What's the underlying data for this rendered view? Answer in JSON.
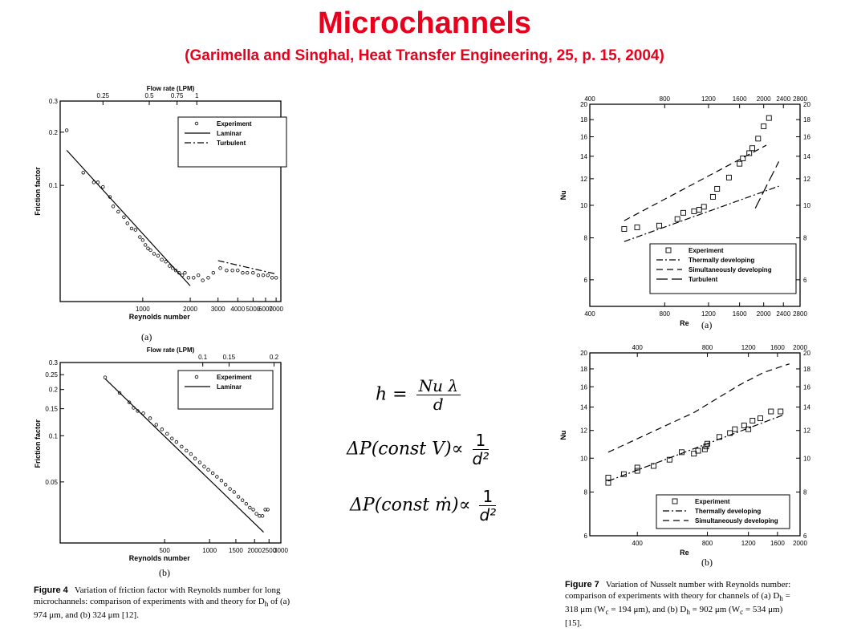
{
  "header": {
    "title": "Microchannels",
    "subtitle": "(Garimella and Singhal, Heat Transfer Engineering, 25,  p. 15, 2004)"
  },
  "equations": {
    "eq1_lhs": "h =",
    "eq1_num": "Nu λ",
    "eq1_den": "d",
    "eq2_lhs": "ΔP(const V)∝",
    "eq2_num": "1",
    "eq2_den": "d²",
    "eq3_lhs": "ΔP(const ṁ)∝",
    "eq3_num": "1",
    "eq3_den": "d²"
  },
  "figure4": {
    "caption_label": "Figure 4",
    "caption_text": "Variation of friction factor with Reynolds number for long microchannels: comparison of experiments with and theory for D",
    "caption_tail": "h",
    "caption_rest": " of (a) 974 μm, and (b) 324 μm [12].",
    "sub_a": "(a)",
    "sub_b": "(b)"
  },
  "figure7": {
    "caption_label": "Figure 7",
    "caption_line1": "Variation of Nusselt number with Reynolds number:",
    "caption_line2": "comparison of experiments with theory for channels of (a) D",
    "caption_line2b": " =",
    "caption_line3": "318 μm (W",
    "caption_line3b": " = 194 μm), and (b) D",
    "caption_line3c": " = 902 μm (W",
    "caption_line3d": " = 534 μm)",
    "caption_line4": "[15].",
    "sub_h": "h",
    "sub_c": "c",
    "sub_a": "(a)",
    "sub_b": "(b)"
  },
  "chart_data": [
    {
      "type": "scatter",
      "panel": "fig4a",
      "xlabel": "Reynolds number",
      "ylabel": "Friction factor",
      "top_axis_label": "Flow rate (LPM)",
      "x_scale": "log",
      "y_scale": "log",
      "xlim": [
        300,
        7500
      ],
      "ylim": [
        0.022,
        0.3
      ],
      "x_ticks": [
        "1000",
        "2000",
        "3000",
        "4000",
        "5000",
        "6000",
        "7000"
      ],
      "x_tick_values": [
        1000,
        2000,
        3000,
        4000,
        5000,
        6000,
        7000
      ],
      "y_ticks": [
        "0.3",
        "0.2",
        "0.1"
      ],
      "y_tick_values": [
        0.3,
        0.2,
        0.1
      ],
      "top_ticks": [
        "0.25",
        "0.5",
        "0.75",
        "1"
      ],
      "top_tick_re": [
        560,
        1100,
        1650,
        2200
      ],
      "legend": [
        "Experiment",
        "Laminar",
        "Turbulent"
      ],
      "series": [
        {
          "name": "Experiment",
          "style": "circle",
          "x": [
            330,
            420,
            490,
            520,
            560,
            620,
            650,
            700,
            760,
            800,
            850,
            900,
            960,
            1000,
            1040,
            1080,
            1120,
            1180,
            1250,
            1320,
            1400,
            1480,
            1550,
            1620,
            1700,
            1780,
            1850,
            1950,
            2100,
            2250,
            2400,
            2600,
            2800,
            3100,
            3400,
            3700,
            4000,
            4300,
            4600,
            5000,
            5400,
            5800,
            6200,
            6600,
            7000
          ],
          "y": [
            0.205,
            0.118,
            0.104,
            0.104,
            0.098,
            0.086,
            0.076,
            0.071,
            0.066,
            0.061,
            0.057,
            0.056,
            0.051,
            0.049,
            0.046,
            0.044,
            0.043,
            0.041,
            0.04,
            0.038,
            0.037,
            0.035,
            0.034,
            0.033,
            0.032,
            0.031,
            0.032,
            0.03,
            0.03,
            0.031,
            0.029,
            0.03,
            0.032,
            0.034,
            0.033,
            0.033,
            0.033,
            0.032,
            0.032,
            0.032,
            0.031,
            0.031,
            0.031,
            0.03,
            0.03
          ]
        },
        {
          "name": "Laminar",
          "style": "solid",
          "x": [
            330,
            2000
          ],
          "y": [
            0.158,
            0.027
          ]
        },
        {
          "name": "Turbulent",
          "style": "dashdot",
          "x": [
            3000,
            7000
          ],
          "y": [
            0.0375,
            0.0315
          ]
        }
      ]
    },
    {
      "type": "scatter",
      "panel": "fig4b",
      "xlabel": "Reynolds number",
      "ylabel": "Friction factor",
      "top_axis_label": "Flow rate (LPM)",
      "x_scale": "log",
      "y_scale": "log",
      "xlim": [
        100,
        3000
      ],
      "ylim": [
        0.02,
        0.3
      ],
      "x_ticks": [
        "500",
        "1000",
        "1500",
        "2000",
        "2500",
        "3000"
      ],
      "x_tick_values": [
        500,
        1000,
        1500,
        2000,
        2500,
        3000
      ],
      "y_ticks": [
        "0.3",
        "0.25",
        "0.2",
        "0.15",
        "0.1",
        "0.05"
      ],
      "y_tick_values": [
        0.3,
        0.25,
        0.2,
        0.15,
        0.1,
        0.05
      ],
      "top_ticks": [
        "0.1",
        "0.15",
        "0.2"
      ],
      "top_tick_re": [
        900,
        1350,
        2700
      ],
      "legend": [
        "Experiment",
        "Laminar"
      ],
      "series": [
        {
          "name": "Experiment",
          "style": "circle",
          "x": [
            200,
            250,
            290,
            310,
            330,
            360,
            400,
            440,
            480,
            520,
            560,
            600,
            650,
            700,
            750,
            800,
            860,
            920,
            980,
            1050,
            1120,
            1200,
            1280,
            1370,
            1460,
            1560,
            1660,
            1760,
            1860,
            1960,
            2060,
            2160,
            2260,
            2360,
            2450
          ],
          "y": [
            0.24,
            0.19,
            0.165,
            0.152,
            0.145,
            0.14,
            0.13,
            0.118,
            0.11,
            0.103,
            0.096,
            0.091,
            0.085,
            0.08,
            0.076,
            0.071,
            0.067,
            0.063,
            0.06,
            0.057,
            0.054,
            0.051,
            0.048,
            0.045,
            0.043,
            0.04,
            0.038,
            0.036,
            0.034,
            0.033,
            0.031,
            0.03,
            0.03,
            0.033,
            0.033
          ]
        },
        {
          "name": "Laminar",
          "style": "solid",
          "x": [
            200,
            2300
          ],
          "y": [
            0.235,
            0.0235
          ]
        }
      ]
    },
    {
      "type": "scatter",
      "panel": "fig7a",
      "xlabel": "Re",
      "ylabel": "Nu",
      "x_scale": "log",
      "y_scale": "log",
      "xlim": [
        400,
        2800
      ],
      "ylim": [
        5.0,
        20
      ],
      "x_ticks": [
        "400",
        "800",
        "1200",
        "1600",
        "2000",
        "2400",
        "2800"
      ],
      "x_tick_values": [
        400,
        800,
        1200,
        1600,
        2000,
        2400,
        2800
      ],
      "y_ticks": [
        "20",
        "18",
        "16",
        "14",
        "12",
        "10",
        "8",
        "6"
      ],
      "y_tick_values": [
        20,
        18,
        16,
        14,
        12,
        10,
        8,
        6
      ],
      "legend": [
        "Experiment",
        "Thermally developing",
        "Simultaneously developing",
        "Turbulent"
      ],
      "series": [
        {
          "name": "Experiment",
          "style": "square",
          "x": [
            550,
            620,
            760,
            900,
            950,
            1050,
            1100,
            1150,
            1250,
            1300,
            1450,
            1600,
            1650,
            1750,
            1800,
            1900,
            2000,
            2100
          ],
          "y": [
            8.5,
            8.6,
            8.7,
            9.1,
            9.5,
            9.6,
            9.7,
            9.9,
            10.6,
            11.2,
            12.1,
            13.3,
            13.8,
            14.3,
            14.8,
            15.8,
            17.2,
            18.2
          ]
        },
        {
          "name": "Thermally developing",
          "style": "dashdot",
          "x": [
            550,
            2300
          ],
          "y": [
            7.8,
            11.4
          ]
        },
        {
          "name": "Simultaneously developing",
          "style": "dash",
          "x": [
            550,
            2050
          ],
          "y": [
            9.0,
            15.1
          ]
        },
        {
          "name": "Turbulent",
          "style": "longdash",
          "x": [
            1850,
            2300
          ],
          "y": [
            9.8,
            13.5
          ]
        }
      ]
    },
    {
      "type": "scatter",
      "panel": "fig7b",
      "xlabel": "Re",
      "ylabel": "Nu",
      "x_scale": "log",
      "y_scale": "log",
      "xlim": [
        250,
        2000
      ],
      "ylim": [
        6,
        20
      ],
      "x_ticks": [
        "400",
        "800",
        "1200",
        "1600",
        "2000"
      ],
      "x_tick_values": [
        400,
        800,
        1200,
        1600,
        2000
      ],
      "y_ticks": [
        "20",
        "18",
        "16",
        "14",
        "12",
        "10",
        "8",
        "6"
      ],
      "y_tick_values": [
        20,
        18,
        16,
        14,
        12,
        10,
        8,
        6
      ],
      "legend": [
        "Experiment",
        "Thermally developing",
        "Simultaneously developing"
      ],
      "series": [
        {
          "name": "Experiment",
          "style": "square",
          "x": [
            300,
            300,
            350,
            400,
            400,
            470,
            550,
            620,
            700,
            730,
            780,
            790,
            800,
            900,
            1000,
            1050,
            1150,
            1200,
            1250,
            1350,
            1500,
            1650
          ],
          "y": [
            8.8,
            8.5,
            9.0,
            9.4,
            9.2,
            9.5,
            9.9,
            10.4,
            10.3,
            10.5,
            10.6,
            10.8,
            11.0,
            11.5,
            11.8,
            12.1,
            12.4,
            12.1,
            12.8,
            13.0,
            13.6,
            13.6
          ]
        },
        {
          "name": "Thermally developing",
          "style": "dashdot",
          "x": [
            300,
            1700
          ],
          "y": [
            8.6,
            13.3
          ]
        },
        {
          "name": "Simultaneously developing",
          "style": "dash",
          "x": [
            300,
            700,
            1100,
            1400,
            1800
          ],
          "y": [
            10.4,
            13.5,
            16.2,
            17.6,
            18.6
          ]
        }
      ]
    }
  ]
}
